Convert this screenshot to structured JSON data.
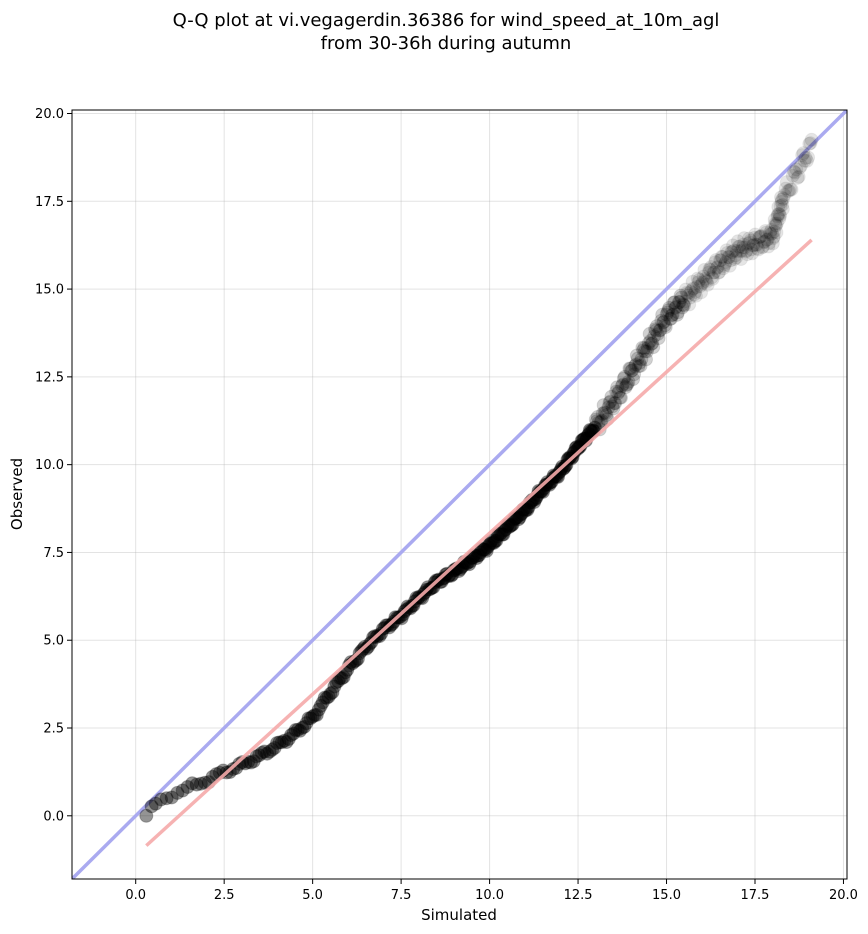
{
  "chart_data": {
    "type": "scatter",
    "title": "Q-Q plot at vi.vegagerdin.36386 for wind_speed_at_10m_agl",
    "subtitle": "from 30-36h during autumn",
    "xlabel": "Simulated",
    "ylabel": "Observed",
    "xlim": [
      -1.8,
      20.1
    ],
    "ylim": [
      -1.8,
      20.1
    ],
    "xticks": [
      "0.0",
      "2.5",
      "5.0",
      "7.5",
      "10.0",
      "12.5",
      "15.0",
      "17.5",
      "20.0"
    ],
    "yticks": [
      "0.0",
      "2.5",
      "5.0",
      "7.5",
      "10.0",
      "12.5",
      "15.0",
      "17.5",
      "20.0"
    ],
    "grid": true,
    "colors": {
      "points": "#000000",
      "identity_line": "#aaaaf0",
      "fit_line": "#f5aaaa"
    },
    "identity_line": {
      "x": [
        -1.8,
        20.1
      ],
      "y": [
        -1.8,
        20.1
      ]
    },
    "fit_line": {
      "x": [
        0.3,
        19.1
      ],
      "y": [
        -0.85,
        16.4
      ]
    },
    "quantile_anchors": {
      "x": [
        0.3,
        0.4,
        0.6,
        1.0,
        1.5,
        2.0,
        2.5,
        3.0,
        3.5,
        4.0,
        4.5,
        5.0,
        5.5,
        6.0,
        6.5,
        7.0,
        7.5,
        8.0,
        8.5,
        9.0,
        9.5,
        10.0,
        10.5,
        11.0,
        11.5,
        12.0,
        12.5,
        13.0,
        13.5,
        14.0,
        14.5,
        15.0,
        15.5,
        16.0,
        16.5,
        17.0,
        17.5,
        18.0,
        18.3,
        19.1
      ],
      "y": [
        0.0,
        0.15,
        0.35,
        0.6,
        0.8,
        1.0,
        1.25,
        1.45,
        1.7,
        2.0,
        2.35,
        2.8,
        3.5,
        4.2,
        4.8,
        5.3,
        5.7,
        6.2,
        6.65,
        6.95,
        7.3,
        7.7,
        8.2,
        8.7,
        9.3,
        9.8,
        10.5,
        11.1,
        11.8,
        12.6,
        13.4,
        14.2,
        14.7,
        15.2,
        15.7,
        16.1,
        16.3,
        16.5,
        17.6,
        19.1
      ]
    },
    "point_count": 520
  }
}
